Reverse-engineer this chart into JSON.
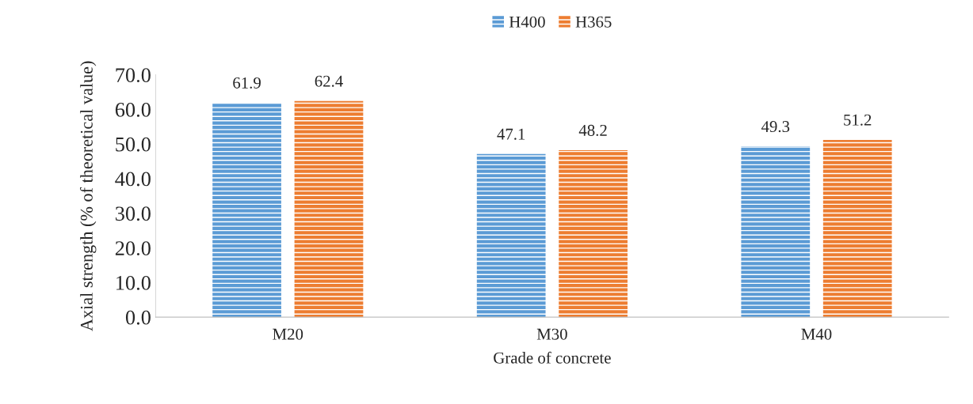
{
  "chart_data": {
    "type": "bar",
    "xlabel": "Grade of concrete",
    "ylabel": "Axial strength (% of theoretical value)",
    "categories": [
      "M20",
      "M30",
      "M40"
    ],
    "series": [
      {
        "name": "H400",
        "color": "#5b9bd5",
        "values": [
          61.9,
          47.1,
          49.3
        ]
      },
      {
        "name": "H365",
        "color": "#ed7d31",
        "values": [
          62.4,
          48.2,
          51.2
        ]
      }
    ],
    "ylim": [
      0,
      70
    ],
    "yticks": [
      {
        "value": 0,
        "label": "0.0"
      },
      {
        "value": 10,
        "label": "10.0"
      },
      {
        "value": 20,
        "label": "20.0"
      },
      {
        "value": 30,
        "label": "30.0"
      },
      {
        "value": 40,
        "label": "40.0"
      },
      {
        "value": 50,
        "label": "50.0"
      },
      {
        "value": 60,
        "label": "60.0"
      },
      {
        "value": 70,
        "label": "70.0"
      }
    ],
    "data_labels": true,
    "legend": "top",
    "grid": false
  }
}
